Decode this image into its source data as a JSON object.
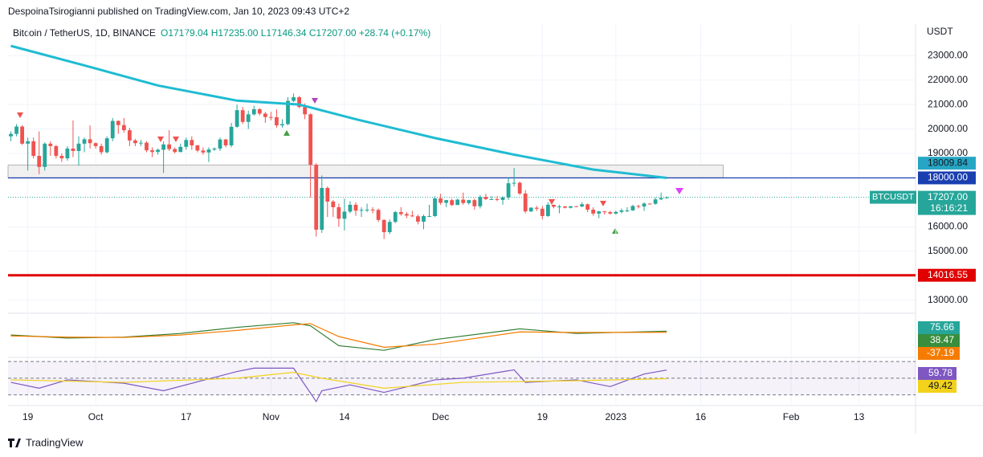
{
  "header": {
    "publisher": "DespoinaTsirogianni published on TradingView.com, Jan 10, 2023 09:43 UTC+2",
    "footer": "TradingView"
  },
  "chart_data": {
    "type": "candlestick",
    "title": "Bitcoin / TetherUS, 1D, BINANCE",
    "ohlc_label": "O17179.04 H17235.00 L17146.34 C17207.00 +28.74 (+0.17%)",
    "currency": "USDT",
    "symbol": "BTCUSDT",
    "countdown": "16:16:21",
    "up_color": "#26a69a",
    "down_color": "#ef5350",
    "open": [
      19700,
      19800,
      20100,
      19400,
      19500,
      18900,
      18450,
      19400,
      19300,
      18900,
      18800,
      19200,
      19100,
      19400,
      19580,
      19420,
      19300,
      19050,
      19620,
      20330,
      20160,
      19950,
      19530,
      19420,
      19440,
      19130,
      19060,
      19150,
      19370,
      19180,
      19060,
      19270,
      19550,
      19330,
      19120,
      19040,
      19160,
      19200,
      19570,
      19330,
      20090,
      20770,
      20290,
      20600,
      20810,
      20630,
      20490,
      20480,
      20150,
      20200,
      21150,
      21300,
      20900,
      20600,
      18540,
      15880,
      17590,
      17030,
      16800,
      16330,
      16620,
      16900,
      16660,
      16690,
      16700,
      16690,
      16280,
      15780,
      16200,
      16600,
      16520,
      16460,
      16430,
      16210,
      16440,
      16440,
      17160,
      16980,
      17090,
      16890,
      17110,
      16970,
      17090,
      16840,
      17220,
      17130,
      17130,
      17100,
      17200,
      17780,
      17800,
      17360,
      16630,
      16780,
      16740,
      16440,
      16900,
      16820,
      16830,
      16780,
      16840,
      16830,
      16920,
      16700,
      16540,
      16630,
      16600,
      16540,
      16610,
      16670,
      16670,
      16850,
      16830,
      16950,
      16940,
      17120,
      17179.04
    ],
    "high": [
      19900,
      20200,
      20150,
      19650,
      19650,
      19900,
      19450,
      19500,
      19350,
      19000,
      19300,
      20350,
      19700,
      19650,
      20150,
      19450,
      19400,
      19700,
      20450,
      20350,
      20450,
      20050,
      19600,
      19550,
      19500,
      19250,
      19200,
      19500,
      19950,
      19250,
      19400,
      19650,
      19700,
      19350,
      19250,
      19250,
      19250,
      19650,
      19600,
      20250,
      21000,
      20900,
      20750,
      20950,
      20850,
      20700,
      20700,
      20800,
      20400,
      21300,
      21450,
      21350,
      21050,
      20650,
      18600,
      18100,
      17650,
      17100,
      16950,
      17150,
      17050,
      17000,
      16800,
      16950,
      16800,
      16750,
      16300,
      16300,
      16650,
      16800,
      16600,
      16650,
      16500,
      16500,
      16900,
      17250,
      17350,
      17100,
      17150,
      17150,
      17400,
      17100,
      17150,
      17300,
      17350,
      17250,
      17250,
      17250,
      18000,
      18400,
      17850,
      17500,
      16800,
      16850,
      16850,
      17000,
      16900,
      16900,
      16850,
      16850,
      16850,
      17000,
      16950,
      16800,
      16650,
      16650,
      16650,
      16650,
      16750,
      16800,
      16900,
      16900,
      17000,
      16950,
      17200,
      17400,
      17235
    ],
    "low": [
      19500,
      19700,
      19350,
      18300,
      18800,
      18150,
      18300,
      18900,
      18800,
      18650,
      18700,
      18850,
      18500,
      19050,
      19200,
      19200,
      18950,
      19000,
      19500,
      19800,
      19850,
      19300,
      19300,
      19300,
      19050,
      18850,
      18950,
      18200,
      19100,
      19000,
      19050,
      19150,
      19150,
      19050,
      18950,
      18650,
      19100,
      19100,
      19250,
      19250,
      20050,
      20200,
      20000,
      20550,
      20550,
      20250,
      20350,
      20050,
      20050,
      20150,
      21100,
      20850,
      20400,
      17200,
      15600,
      15750,
      16400,
      16400,
      16000,
      15850,
      16550,
      16450,
      16400,
      16600,
      16550,
      16200,
      15500,
      15700,
      16150,
      16450,
      16350,
      16400,
      16100,
      15900,
      16400,
      16400,
      16900,
      16800,
      16850,
      16900,
      16900,
      16900,
      16700,
      16750,
      17100,
      17100,
      17050,
      16900,
      17100,
      17650,
      17300,
      16550,
      16600,
      16650,
      16300,
      16400,
      16750,
      16550,
      16750,
      16750,
      16800,
      16800,
      16600,
      16450,
      16350,
      16500,
      16500,
      16500,
      16550,
      16600,
      16650,
      16750,
      16650,
      16900,
      16900,
      17100,
      17146.34
    ],
    "close": [
      19800,
      20100,
      19400,
      19500,
      18900,
      18450,
      19400,
      19300,
      18900,
      18800,
      19200,
      19100,
      19400,
      19580,
      19420,
      19300,
      19050,
      19620,
      20330,
      20160,
      19950,
      19530,
      19420,
      19440,
      19130,
      19060,
      19150,
      19370,
      19180,
      19060,
      19270,
      19550,
      19330,
      19120,
      19040,
      19160,
      19200,
      19570,
      19330,
      20090,
      20770,
      20290,
      20600,
      20810,
      20630,
      20490,
      20480,
      20150,
      20200,
      21150,
      21300,
      20900,
      20600,
      18540,
      15880,
      17590,
      17030,
      16800,
      16330,
      16620,
      16900,
      16660,
      16690,
      16700,
      16690,
      16280,
      15780,
      16200,
      16600,
      16520,
      16460,
      16430,
      16210,
      16440,
      16440,
      17160,
      16980,
      17090,
      16890,
      17110,
      16970,
      17090,
      16840,
      17220,
      17130,
      17130,
      17100,
      17200,
      17780,
      17800,
      17360,
      16630,
      16780,
      16740,
      16440,
      16900,
      16820,
      16830,
      16780,
      16840,
      16830,
      16920,
      16700,
      16540,
      16630,
      16600,
      16540,
      16610,
      16670,
      16670,
      16850,
      16830,
      16950,
      16940,
      17120,
      17180,
      17207
    ],
    "ma": {
      "color": "#1fbcd2",
      "x": [
        0,
        13,
        26,
        40,
        51,
        61,
        75,
        89,
        103,
        116
      ],
      "values": [
        23400,
        22600,
        21780,
        21160,
        21000,
        20400,
        19630,
        18950,
        18340,
        18000
      ]
    },
    "levels": [
      {
        "value": 18000,
        "label": "18000.00",
        "color": "#1a3fb0"
      },
      {
        "value": 14016.55,
        "label": "14016.55",
        "color": "#e00000"
      }
    ],
    "zone": {
      "top": 18520,
      "bottom": 18009.84,
      "label": "18009.84",
      "color": "#26a6c4"
    },
    "last_price": {
      "value": 17207,
      "label": "17207.00"
    },
    "ylim": [
      12200,
      23700
    ],
    "yticks": [
      {
        "value": 13000,
        "label": "13000.00"
      },
      {
        "value": 15000,
        "label": "15000.00"
      },
      {
        "value": 16000,
        "label": "16000.00"
      },
      {
        "value": 19000,
        "label": "19000.00"
      },
      {
        "value": 20000,
        "label": "20000.00"
      },
      {
        "value": 21000,
        "label": "21000.00"
      },
      {
        "value": 22000,
        "label": "22000.00"
      },
      {
        "value": 23000,
        "label": "23000.00"
      }
    ],
    "xlim": [
      -0.5,
      160
    ],
    "xticks": [
      {
        "value": 3,
        "label": "19"
      },
      {
        "value": 15,
        "label": "Oct"
      },
      {
        "value": 31,
        "label": "17"
      },
      {
        "value": 46,
        "label": "Nov"
      },
      {
        "value": 59,
        "label": "14"
      },
      {
        "value": 76,
        "label": "Dec"
      },
      {
        "value": 94,
        "label": "19"
      },
      {
        "value": 107,
        "label": "2023"
      },
      {
        "value": 122,
        "label": "16"
      },
      {
        "value": 138,
        "label": "Feb"
      },
      {
        "value": 150,
        "label": "13"
      }
    ],
    "macd": {
      "ylim": [
        -650,
        450
      ],
      "x": [
        0,
        10,
        20,
        30,
        40,
        50,
        53,
        58,
        66,
        75,
        90,
        100,
        116
      ],
      "series": [
        {
          "color": "#2e7d32",
          "values": [
            -50,
            -150,
            -120,
            0,
            200,
            350,
            250,
            -400,
            -550,
            -200,
            150,
            0,
            75.66
          ]
        },
        {
          "color": "#f57c00",
          "values": [
            -80,
            -120,
            -130,
            -50,
            100,
            280,
            320,
            -100,
            -450,
            -350,
            50,
            30,
            38.47
          ]
        }
      ],
      "labels": [
        {
          "value": 75.66,
          "color": "#26a69a"
        },
        {
          "value": 38.47,
          "color": "#388e3c"
        },
        {
          "value": -37.19,
          "color": "#f57c00"
        }
      ]
    },
    "rsi": {
      "ylim": [
        22,
        72
      ],
      "bands": [
        70,
        50,
        30
      ],
      "x": [
        0,
        5,
        10,
        20,
        27,
        40,
        43,
        50,
        54,
        55,
        60,
        66,
        75,
        80,
        89,
        91,
        100,
        106,
        112,
        116
      ],
      "series": [
        {
          "color": "#7e57c2",
          "values": [
            45,
            38,
            48,
            44,
            35,
            58,
            62,
            62,
            22,
            35,
            42,
            33,
            48,
            50,
            60,
            45,
            48,
            40,
            55,
            59.78
          ]
        },
        {
          "color": "#f2d21b",
          "x": [
            0,
            20,
            40,
            50,
            55,
            66,
            80,
            100,
            116
          ],
          "values": [
            48,
            45,
            50,
            57,
            50,
            38,
            45,
            47,
            49.42
          ]
        }
      ]
    }
  }
}
